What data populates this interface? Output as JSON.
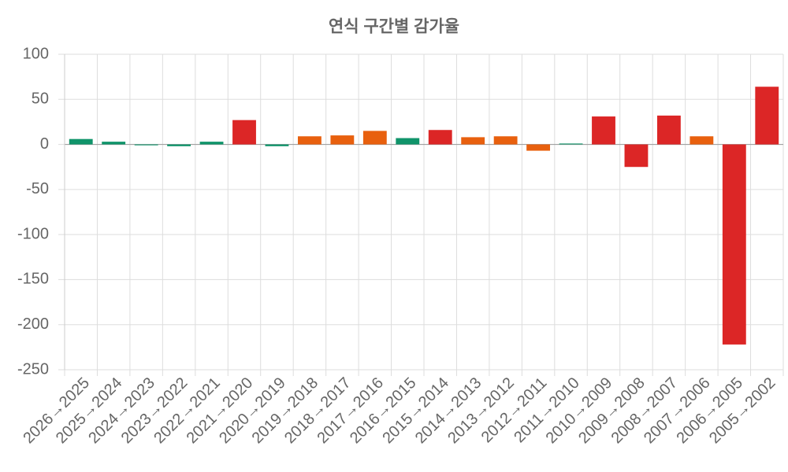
{
  "chart_data": {
    "type": "bar",
    "title": "연식 구간별 감가율",
    "categories": [
      "2026→2025",
      "2025→2024",
      "2024→2023",
      "2023→2022",
      "2022→2021",
      "2021→2020",
      "2020→2019",
      "2019→2018",
      "2018→2017",
      "2017→2016",
      "2016→2015",
      "2015→2014",
      "2014→2013",
      "2013→2012",
      "2012→2011",
      "2011→2010",
      "2010→2009",
      "2009→2008",
      "2008→2007",
      "2007→2006",
      "2006→2005",
      "2005→2002"
    ],
    "values": [
      6,
      3,
      -1,
      -2,
      3,
      27,
      -2,
      9,
      10,
      15,
      7,
      16,
      8,
      9,
      -7,
      1,
      31,
      -25,
      32,
      9,
      -222,
      64
    ],
    "colors": [
      "#10946a",
      "#10946a",
      "#10946a",
      "#10946a",
      "#10946a",
      "#dc2626",
      "#10946a",
      "#e8600e",
      "#e8600e",
      "#e8600e",
      "#10946a",
      "#dc2626",
      "#e8600e",
      "#e8600e",
      "#e8600e",
      "#10946a",
      "#dc2626",
      "#dc2626",
      "#dc2626",
      "#e8600e",
      "#dc2626",
      "#dc2626"
    ],
    "ylim": [
      -250,
      100
    ],
    "yticks": [
      -250,
      -200,
      -150,
      -100,
      -50,
      0,
      50,
      100
    ],
    "grid": true
  }
}
